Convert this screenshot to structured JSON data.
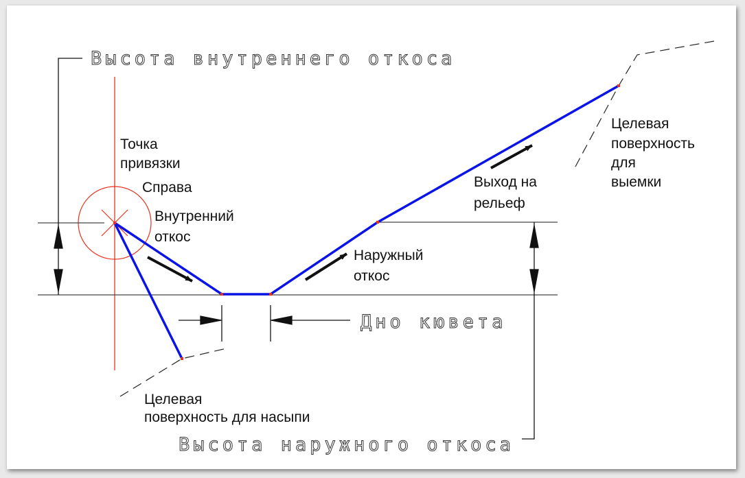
{
  "labels": {
    "inner_slope_height": "Высота внутреннего откоса",
    "outer_slope_height": "Высота наружного откоса",
    "ditch_bottom": "Дно кювета",
    "anchor_point": [
      "Точка",
      "привязки"
    ],
    "side": "Справа",
    "inner_slope": [
      "Внутренний",
      "откос"
    ],
    "outer_slope": [
      "Наружный",
      "откос"
    ],
    "daylight": [
      "Выход на",
      "рельеф"
    ],
    "target_cut": [
      "Целевая",
      "поверхность",
      "для",
      "выемки"
    ],
    "target_fill": [
      "Целевая",
      "поверхность для насыпи"
    ]
  },
  "colors": {
    "profile": "#0a14e6",
    "anchor": "#e8321e",
    "dimension": "#333333"
  }
}
